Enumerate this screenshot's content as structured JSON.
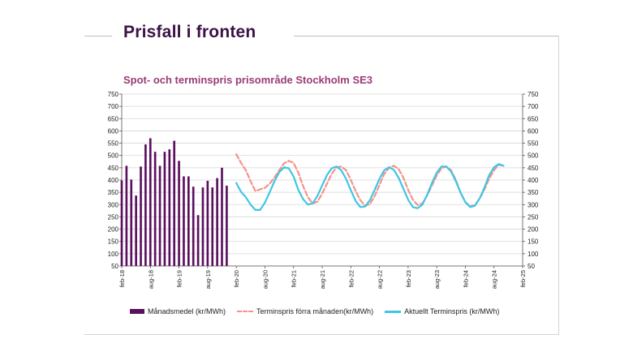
{
  "slide": {
    "title": "Prisfall i fronten"
  },
  "colors": {
    "title": "#3b1247",
    "chart_title": "#9a3c75",
    "bars": "#5b0f5f",
    "dashed": "#f4928c",
    "solid": "#3ec6e4"
  },
  "chart_data": {
    "type": "bar",
    "title": "Spot- och terminspris prisområde Stockholm SE3",
    "xlabel": "",
    "ylabel": "",
    "ylim": [
      50,
      750
    ],
    "yticks": [
      50,
      100,
      150,
      200,
      250,
      300,
      350,
      400,
      450,
      500,
      550,
      600,
      650,
      700,
      750
    ],
    "grid": true,
    "legend_position": "bottom",
    "x_tick_labels": [
      "feb-18",
      "aug-18",
      "feb-19",
      "aug-19",
      "feb-20",
      "aug-20",
      "feb-21",
      "aug-21",
      "feb-22",
      "aug-22",
      "feb-23",
      "aug-23",
      "feb-24",
      "aug-24",
      "feb-25"
    ],
    "x_start": "2018-02",
    "x_end": "2025-02",
    "series": [
      {
        "name": "Månadsmedel (kr/MWh)",
        "type": "bar",
        "start": "2018-02",
        "values": [
          398,
          458,
          402,
          337,
          455,
          545,
          570,
          515,
          458,
          515,
          525,
          560,
          478,
          415,
          415,
          373,
          257,
          370,
          397,
          370,
          408,
          450,
          377
        ]
      },
      {
        "name": "Terminspris förra månaden(kr/MWh)",
        "type": "line",
        "style": "dashed",
        "start": "2020-02",
        "values": [
          505,
          470,
          440,
          395,
          355,
          362,
          368,
          385,
          410,
          440,
          468,
          478,
          470,
          430,
          375,
          330,
          305,
          312,
          345,
          385,
          425,
          452,
          455,
          440,
          400,
          355,
          318,
          295,
          302,
          335,
          380,
          425,
          450,
          458,
          445,
          410,
          360,
          320,
          298,
          305,
          338,
          378,
          418,
          448,
          455,
          440,
          400,
          350,
          310,
          293,
          298,
          325,
          362,
          405,
          440,
          462,
          458
        ]
      },
      {
        "name": "Aktuellt Terminspris (kr/MWh)",
        "type": "line",
        "style": "solid",
        "start": "2020-02",
        "values": [
          388,
          352,
          330,
          300,
          278,
          278,
          308,
          350,
          395,
          432,
          452,
          448,
          415,
          360,
          322,
          300,
          305,
          335,
          378,
          420,
          448,
          455,
          440,
          405,
          358,
          315,
          290,
          292,
          318,
          360,
          405,
          440,
          452,
          442,
          410,
          365,
          320,
          290,
          285,
          300,
          340,
          388,
          430,
          455,
          455,
          435,
          395,
          348,
          310,
          290,
          295,
          325,
          370,
          420,
          452,
          465,
          458
        ]
      }
    ]
  }
}
